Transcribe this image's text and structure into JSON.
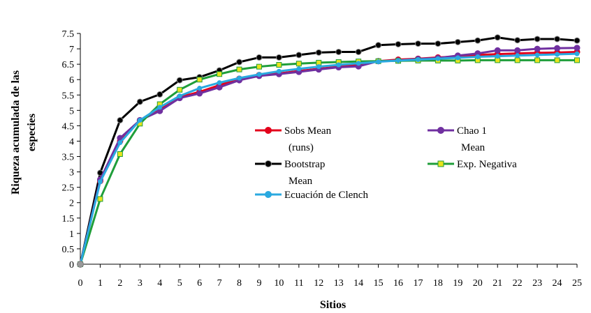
{
  "chart_data": {
    "type": "line",
    "title": "",
    "xlabel": "Sitios",
    "ylabel_lines": [
      "Riqueza  acumulada de las",
      "especies"
    ],
    "x": [
      0,
      1,
      2,
      3,
      4,
      5,
      6,
      7,
      8,
      9,
      10,
      11,
      12,
      13,
      14,
      15,
      16,
      17,
      18,
      19,
      20,
      21,
      22,
      23,
      24,
      25
    ],
    "x_tick_labels": [
      "0",
      "1",
      "2",
      "3",
      "4",
      "5",
      "6",
      "7",
      "8",
      "9",
      "10",
      "11",
      "12",
      "13",
      "14",
      "15",
      "16",
      "17",
      "18",
      "19",
      "20",
      "21",
      "22",
      "23",
      "24",
      "25"
    ],
    "y_tick_labels": [
      "0",
      "0.5",
      "1",
      "1.5",
      "2",
      "2.5",
      "3",
      "3.5",
      "4",
      "4.5",
      "5",
      "5.5",
      "6",
      "6.5",
      "7",
      "7.5"
    ],
    "xlim": [
      0,
      25
    ],
    "ylim": [
      0,
      7.5
    ],
    "grid": false,
    "series": [
      {
        "name": "Sobs Mean (runs)",
        "legend_lines": [
          "Sobs Mean",
          "(runs)"
        ],
        "color": "#e3001b",
        "values": [
          0,
          2.7,
          4.0,
          4.68,
          5.05,
          5.43,
          5.6,
          5.82,
          6.03,
          6.15,
          6.2,
          6.28,
          6.35,
          6.42,
          6.48,
          6.6,
          6.65,
          6.68,
          6.72,
          6.75,
          6.8,
          6.83,
          6.85,
          6.87,
          6.88,
          6.9
        ]
      },
      {
        "name": "Chao 1 Mean",
        "legend_lines": [
          "Chao 1",
          "Mean"
        ],
        "color": "#7030a0",
        "values": [
          0,
          2.75,
          4.1,
          4.68,
          4.98,
          5.4,
          5.55,
          5.75,
          5.98,
          6.12,
          6.18,
          6.25,
          6.33,
          6.4,
          6.43,
          6.6,
          6.62,
          6.67,
          6.7,
          6.78,
          6.85,
          6.95,
          6.95,
          7.0,
          7.02,
          7.03
        ]
      },
      {
        "name": "Bootstrap Mean",
        "legend_lines": [
          "Bootstrap",
          "Mean"
        ],
        "color": "#000000",
        "values": [
          0,
          2.97,
          4.68,
          5.28,
          5.52,
          5.98,
          6.08,
          6.3,
          6.57,
          6.72,
          6.72,
          6.8,
          6.88,
          6.9,
          6.9,
          7.12,
          7.15,
          7.17,
          7.17,
          7.22,
          7.27,
          7.37,
          7.28,
          7.32,
          7.32,
          7.27
        ]
      },
      {
        "name": "Exp. Negativa",
        "legend_lines": [
          "Exp. Negativa"
        ],
        "color": "#1f9e3a",
        "values": [
          0,
          2.12,
          3.58,
          4.57,
          5.2,
          5.67,
          6.0,
          6.18,
          6.33,
          6.42,
          6.48,
          6.52,
          6.55,
          6.57,
          6.59,
          6.6,
          6.61,
          6.62,
          6.62,
          6.62,
          6.63,
          6.63,
          6.63,
          6.63,
          6.63,
          6.63
        ]
      },
      {
        "name": "Ecuación de Clench",
        "legend_lines": [
          "Ecuación de Clench"
        ],
        "color": "#2aa9e0",
        "values": [
          0,
          2.68,
          3.95,
          4.68,
          5.1,
          5.47,
          5.72,
          5.9,
          6.05,
          6.17,
          6.27,
          6.35,
          6.42,
          6.48,
          6.53,
          6.58,
          6.62,
          6.65,
          6.68,
          6.71,
          6.74,
          6.76,
          6.78,
          6.8,
          6.82,
          6.84
        ]
      }
    ]
  }
}
